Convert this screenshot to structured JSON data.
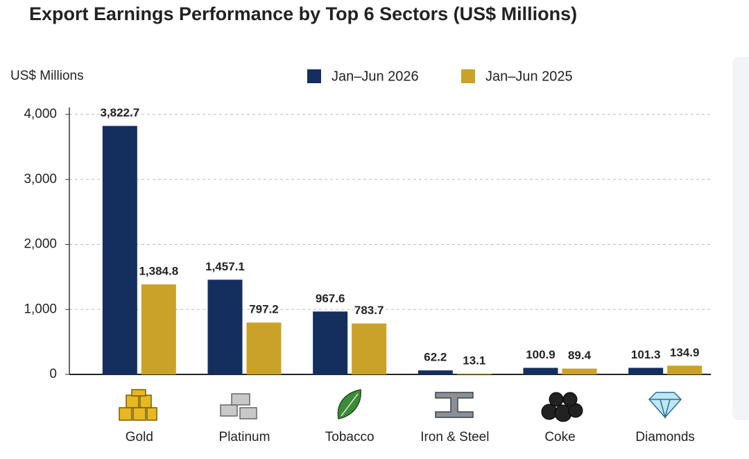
{
  "chart_data": {
    "type": "bar",
    "title": "Export Earnings Performance by Top 6 Sectors (US$ Millions)",
    "y_label": "US$ Millions",
    "categories": [
      "Gold",
      "Platinum",
      "Tobacco",
      "Iron & Steel",
      "Coke",
      "Diamonds"
    ],
    "series": [
      {
        "name": "Jan–Jun 2026",
        "color": "#142f5e",
        "values": [
          3822.7,
          1457.1,
          967.6,
          62.2,
          100.9,
          101.3
        ],
        "value_labels": [
          "3,822.7",
          "1,457.1",
          "967.6",
          "62.2",
          "100.9",
          "101.3"
        ]
      },
      {
        "name": "Jan–Jun 2025",
        "color": "#c9a227",
        "values": [
          1384.8,
          797.2,
          783.7,
          13.1,
          89.4,
          134.9
        ],
        "value_labels": [
          "1,384.8",
          "797.2",
          "783.7",
          "13.1",
          "89.4",
          "134.9"
        ]
      }
    ],
    "ylim": [
      0,
      4000
    ],
    "yticks": [
      0,
      {
        "value": 1000,
        "label": "1,000"
      },
      {
        "value": 2000,
        "label": "2,000"
      },
      {
        "value": 3000,
        "label": "3,000"
      },
      {
        "value": 4000,
        "label": "4,000"
      }
    ],
    "grid": true
  }
}
